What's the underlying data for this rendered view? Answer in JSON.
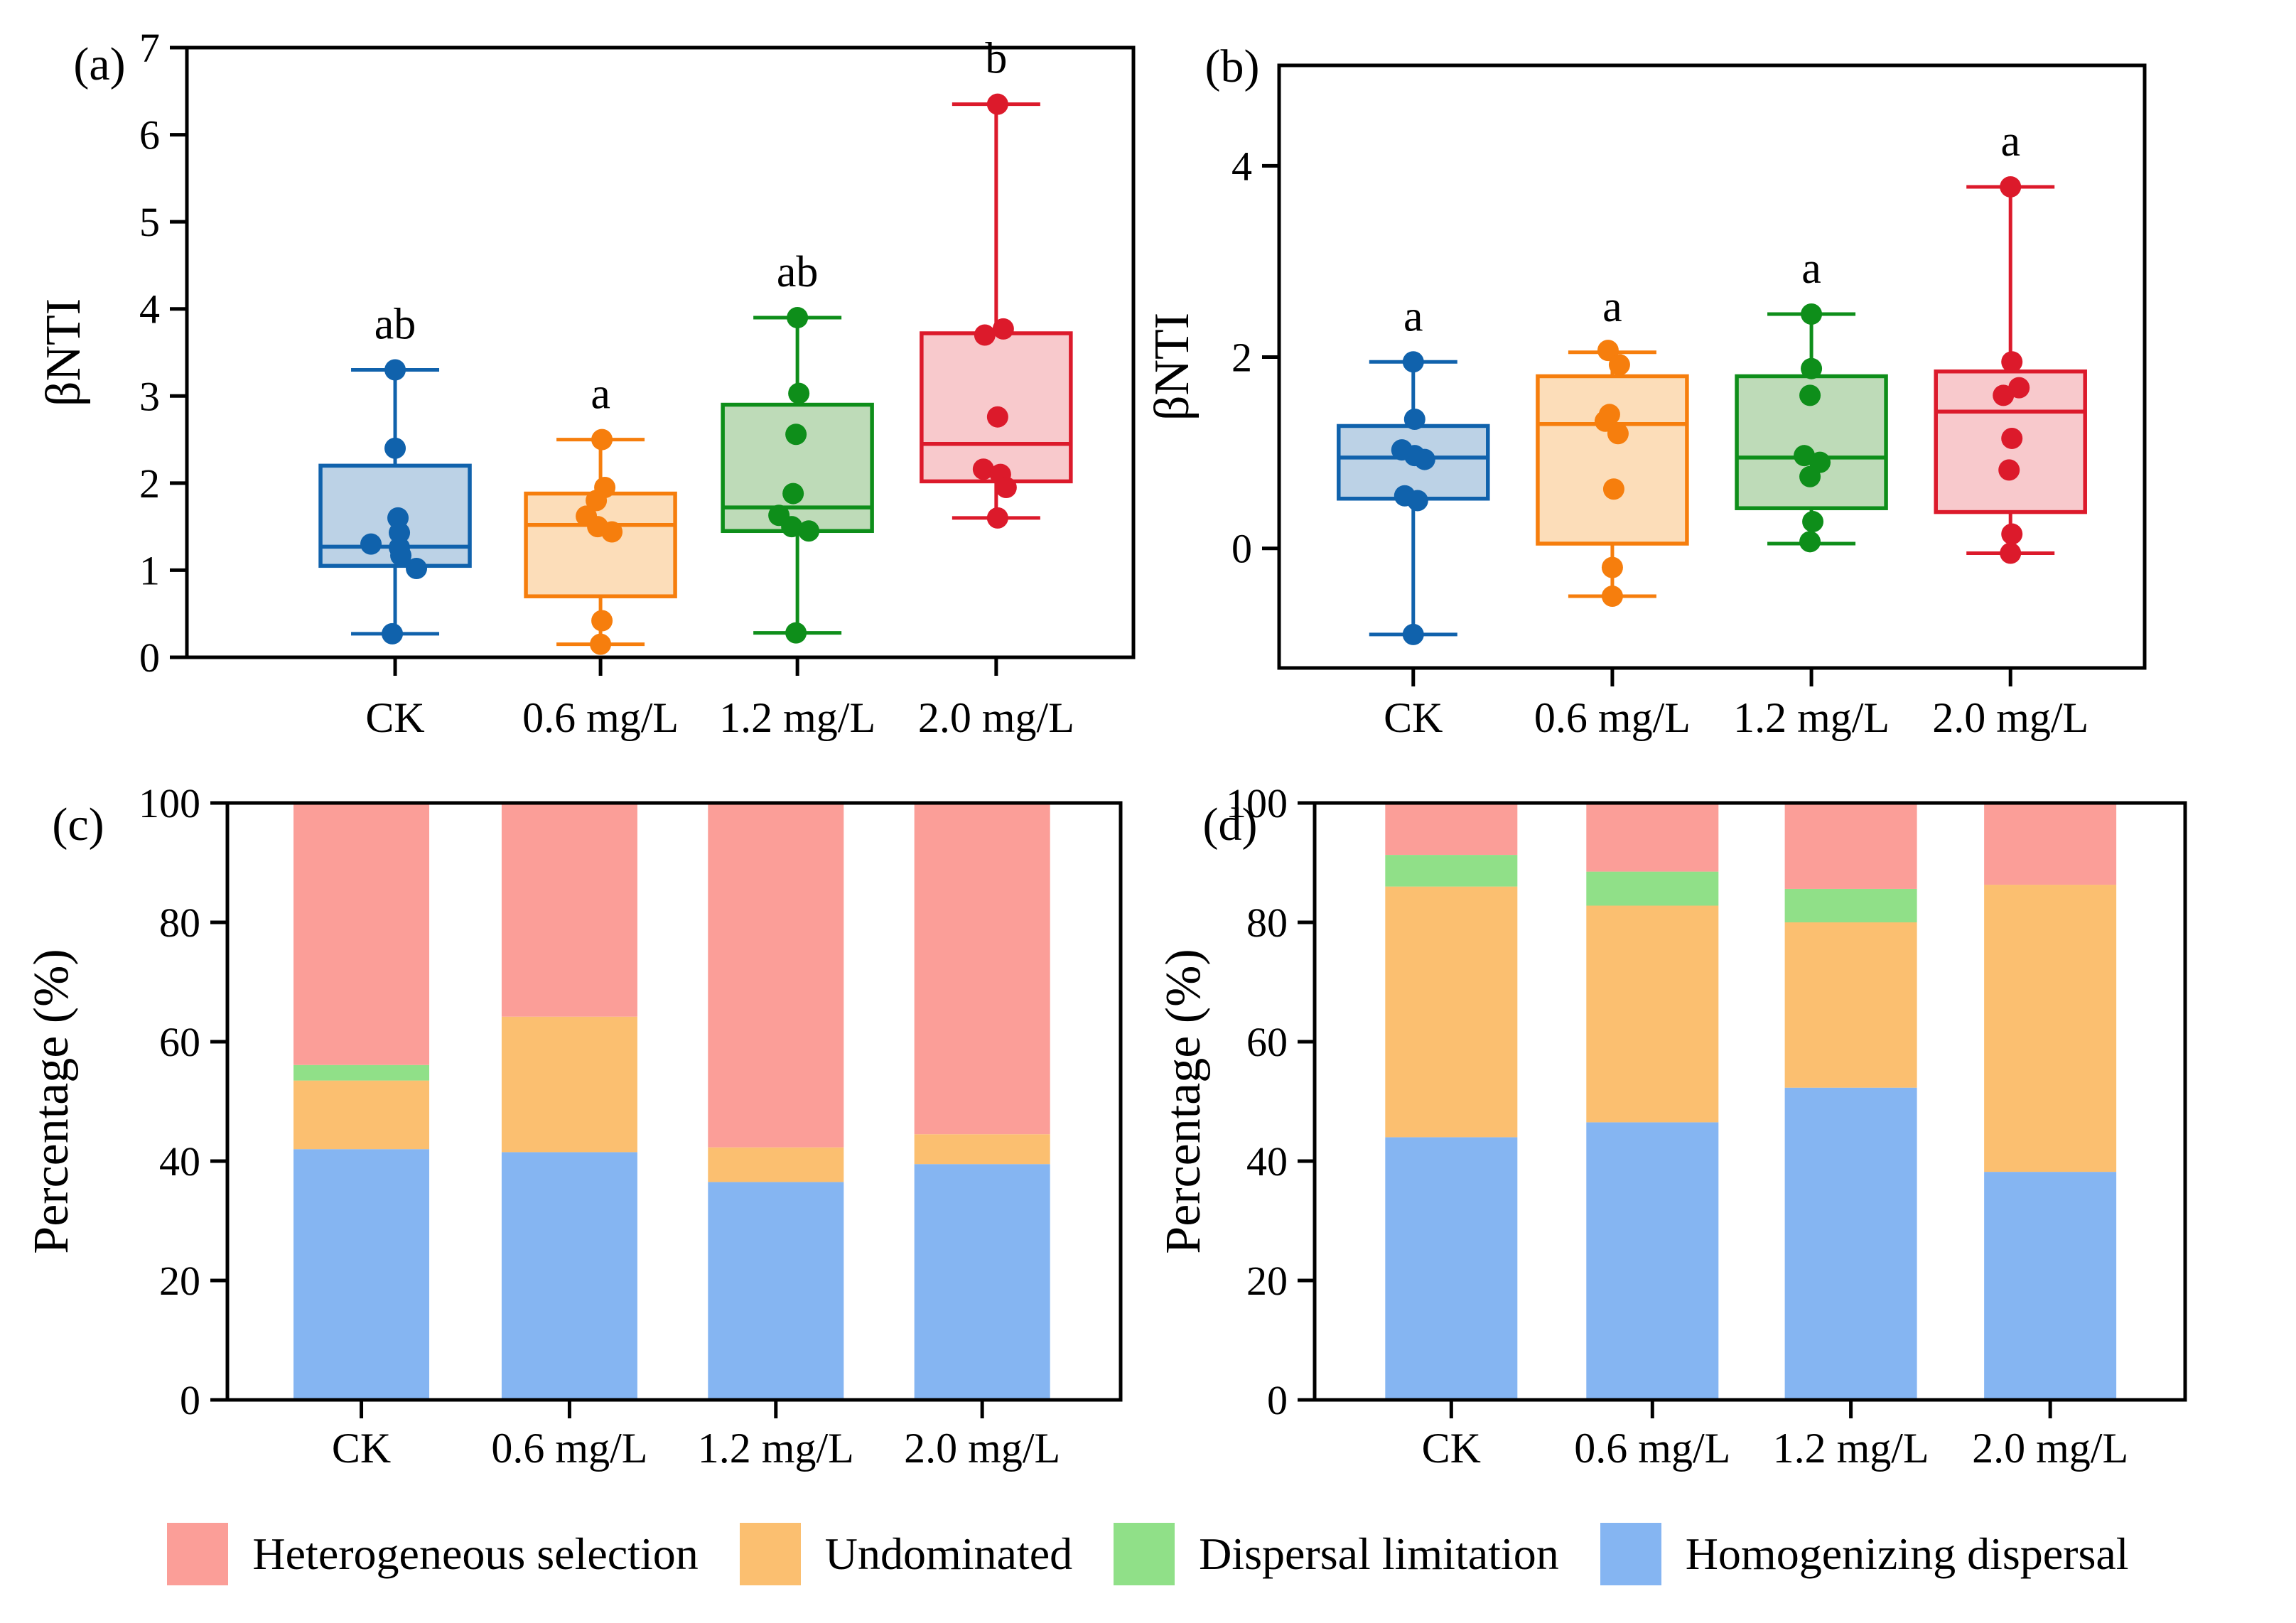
{
  "chart_data": [
    {
      "id": "a",
      "type": "box",
      "panel_label": "(a)",
      "ylabel": "βNTI",
      "ylim": [
        0,
        7
      ],
      "yticks": [
        0,
        1,
        2,
        3,
        4,
        5,
        6,
        7
      ],
      "categories": [
        "CK",
        "0.6 mg/L",
        "1.2 mg/L",
        "2.0 mg/L"
      ],
      "groups": [
        {
          "category": "CK",
          "color": "blue",
          "sig_letter": "ab",
          "whisker_low": 0.27,
          "q1": 1.05,
          "median": 1.27,
          "q3": 2.2,
          "whisker_high": 3.3,
          "points": [
            [
              3.3,
              0
            ],
            [
              2.4,
              0
            ],
            [
              1.6,
              4
            ],
            [
              1.43,
              6
            ],
            [
              1.3,
              -34
            ],
            [
              1.26,
              6
            ],
            [
              1.17,
              8
            ],
            [
              1.02,
              30
            ],
            [
              0.27,
              -4
            ]
          ]
        },
        {
          "category": "0.6 mg/L",
          "color": "orange",
          "sig_letter": "a",
          "whisker_low": 0.15,
          "q1": 0.7,
          "median": 1.52,
          "q3": 1.88,
          "whisker_high": 2.5,
          "points": [
            [
              2.5,
              2
            ],
            [
              1.95,
              6
            ],
            [
              1.8,
              -6
            ],
            [
              1.62,
              -20
            ],
            [
              1.5,
              -4
            ],
            [
              1.44,
              16
            ],
            [
              0.42,
              2
            ],
            [
              0.15,
              0
            ]
          ]
        },
        {
          "category": "1.2 mg/L",
          "color": "green",
          "sig_letter": "ab",
          "whisker_low": 0.28,
          "q1": 1.45,
          "median": 1.72,
          "q3": 2.9,
          "whisker_high": 3.9,
          "points": [
            [
              3.9,
              0
            ],
            [
              3.03,
              2
            ],
            [
              2.56,
              -2
            ],
            [
              1.88,
              -6
            ],
            [
              1.63,
              -26
            ],
            [
              1.5,
              -8
            ],
            [
              1.45,
              16
            ],
            [
              0.28,
              -2
            ]
          ]
        },
        {
          "category": "2.0 mg/L",
          "color": "red",
          "sig_letter": "b",
          "whisker_low": 1.6,
          "q1": 2.02,
          "median": 2.45,
          "q3": 3.72,
          "whisker_high": 6.35,
          "points": [
            [
              6.35,
              2
            ],
            [
              3.77,
              10
            ],
            [
              3.7,
              -16
            ],
            [
              2.76,
              2
            ],
            [
              2.16,
              -18
            ],
            [
              2.1,
              6
            ],
            [
              1.95,
              14
            ],
            [
              1.6,
              2
            ]
          ]
        }
      ]
    },
    {
      "id": "b",
      "type": "box",
      "panel_label": "(b)",
      "ylabel": "βNTI",
      "ylim": [
        -1.25,
        5.05
      ],
      "yticks": [
        0,
        2,
        4
      ],
      "categories": [
        "CK",
        "0.6 mg/L",
        "1.2 mg/L",
        "2.0 mg/L"
      ],
      "groups": [
        {
          "category": "CK",
          "color": "blue",
          "sig_letter": "a",
          "whisker_low": -0.9,
          "q1": 0.52,
          "median": 0.95,
          "q3": 1.28,
          "whisker_high": 1.95,
          "points": [
            [
              1.95,
              0
            ],
            [
              1.35,
              2
            ],
            [
              1.03,
              -16
            ],
            [
              0.97,
              2
            ],
            [
              0.93,
              16
            ],
            [
              0.55,
              -12
            ],
            [
              0.5,
              6
            ],
            [
              -0.9,
              0
            ]
          ]
        },
        {
          "category": "0.6 mg/L",
          "color": "orange",
          "sig_letter": "a",
          "whisker_low": -0.5,
          "q1": 0.05,
          "median": 1.3,
          "q3": 1.8,
          "whisker_high": 2.05,
          "points": [
            [
              2.07,
              -6
            ],
            [
              1.92,
              10
            ],
            [
              1.4,
              -4
            ],
            [
              1.33,
              -10
            ],
            [
              1.2,
              8
            ],
            [
              0.62,
              2
            ],
            [
              -0.2,
              0
            ],
            [
              -0.5,
              0
            ]
          ]
        },
        {
          "category": "1.2 mg/L",
          "color": "green",
          "sig_letter": "a",
          "whisker_low": 0.05,
          "q1": 0.42,
          "median": 0.95,
          "q3": 1.8,
          "whisker_high": 2.45,
          "points": [
            [
              2.45,
              0
            ],
            [
              1.88,
              0
            ],
            [
              1.6,
              -2
            ],
            [
              0.97,
              -10
            ],
            [
              0.9,
              12
            ],
            [
              0.75,
              -2
            ],
            [
              0.28,
              2
            ],
            [
              0.07,
              -2
            ]
          ]
        },
        {
          "category": "2.0 mg/L",
          "color": "red",
          "sig_letter": "a",
          "whisker_low": -0.05,
          "q1": 0.38,
          "median": 1.43,
          "q3": 1.85,
          "whisker_high": 3.78,
          "points": [
            [
              3.78,
              0
            ],
            [
              1.95,
              2
            ],
            [
              1.68,
              12
            ],
            [
              1.6,
              -10
            ],
            [
              1.15,
              2
            ],
            [
              0.82,
              -2
            ],
            [
              0.15,
              2
            ],
            [
              -0.05,
              0
            ]
          ]
        }
      ]
    },
    {
      "id": "c",
      "type": "stacked_bar",
      "panel_label": "(c)",
      "ylabel": "Percentage (%)",
      "ylim": [
        0,
        100
      ],
      "yticks": [
        0,
        20,
        40,
        60,
        80,
        100
      ],
      "categories": [
        "CK",
        "0.6 mg/L",
        "1.2 mg/L",
        "2.0 mg/L"
      ],
      "series_order": [
        "homogenizing_dispersal",
        "undominated",
        "dispersal_limitation",
        "heterogeneous_selection"
      ],
      "bars": [
        {
          "category": "CK",
          "homogenizing_dispersal": 42.0,
          "undominated": 11.5,
          "dispersal_limitation": 2.6,
          "heterogeneous_selection": 43.9
        },
        {
          "category": "0.6 mg/L",
          "homogenizing_dispersal": 41.5,
          "undominated": 22.7,
          "dispersal_limitation": 0,
          "heterogeneous_selection": 35.8
        },
        {
          "category": "1.2 mg/L",
          "homogenizing_dispersal": 36.5,
          "undominated": 5.8,
          "dispersal_limitation": 0,
          "heterogeneous_selection": 57.7
        },
        {
          "category": "2.0 mg/L",
          "homogenizing_dispersal": 39.5,
          "undominated": 5.0,
          "dispersal_limitation": 0,
          "heterogeneous_selection": 55.5
        }
      ]
    },
    {
      "id": "d",
      "type": "stacked_bar",
      "panel_label": "(d)",
      "ylabel": "Percentage (%)",
      "ylim": [
        0,
        100
      ],
      "yticks": [
        0,
        20,
        40,
        60,
        80,
        100
      ],
      "categories": [
        "CK",
        "0.6 mg/L",
        "1.2 mg/L",
        "2.0 mg/L"
      ],
      "series_order": [
        "homogenizing_dispersal",
        "undominated",
        "dispersal_limitation",
        "heterogeneous_selection"
      ],
      "bars": [
        {
          "category": "CK",
          "homogenizing_dispersal": 44.0,
          "undominated": 42.0,
          "dispersal_limitation": 5.3,
          "heterogeneous_selection": 8.7
        },
        {
          "category": "0.6 mg/L",
          "homogenizing_dispersal": 46.5,
          "undominated": 36.3,
          "dispersal_limitation": 5.7,
          "heterogeneous_selection": 11.5
        },
        {
          "category": "1.2 mg/L",
          "homogenizing_dispersal": 52.3,
          "undominated": 27.7,
          "dispersal_limitation": 5.6,
          "heterogeneous_selection": 14.4
        },
        {
          "category": "2.0 mg/L",
          "homogenizing_dispersal": 38.2,
          "undominated": 48.1,
          "dispersal_limitation": 0,
          "heterogeneous_selection": 13.7
        }
      ]
    }
  ],
  "legend": {
    "items": [
      {
        "key": "heterogeneous_selection",
        "label": "Heterogeneous selection",
        "color": "#FB9E98"
      },
      {
        "key": "undominated",
        "label": "Undominated",
        "color": "#FBBF70"
      },
      {
        "key": "dispersal_limitation",
        "label": "Dispersal limitation",
        "color": "#90E088"
      },
      {
        "key": "homogenizing_dispersal",
        "label": "Homogenizing dispersal",
        "color": "#85B5F2"
      }
    ]
  },
  "palette": {
    "box": {
      "blue": {
        "stroke": "#1062AC",
        "fill": "#BCD2E6"
      },
      "orange": {
        "stroke": "#F67E0D",
        "fill": "#FCDDB9"
      },
      "green": {
        "stroke": "#0E8E1A",
        "fill": "#BEDBB8"
      },
      "red": {
        "stroke": "#DC1A2B",
        "fill": "#F8C9CC"
      }
    },
    "bar": {
      "heterogeneous_selection": "#FB9E98",
      "undominated": "#FBBF70",
      "dispersal_limitation": "#90E088",
      "homogenizing_dispersal": "#85B5F2"
    }
  }
}
